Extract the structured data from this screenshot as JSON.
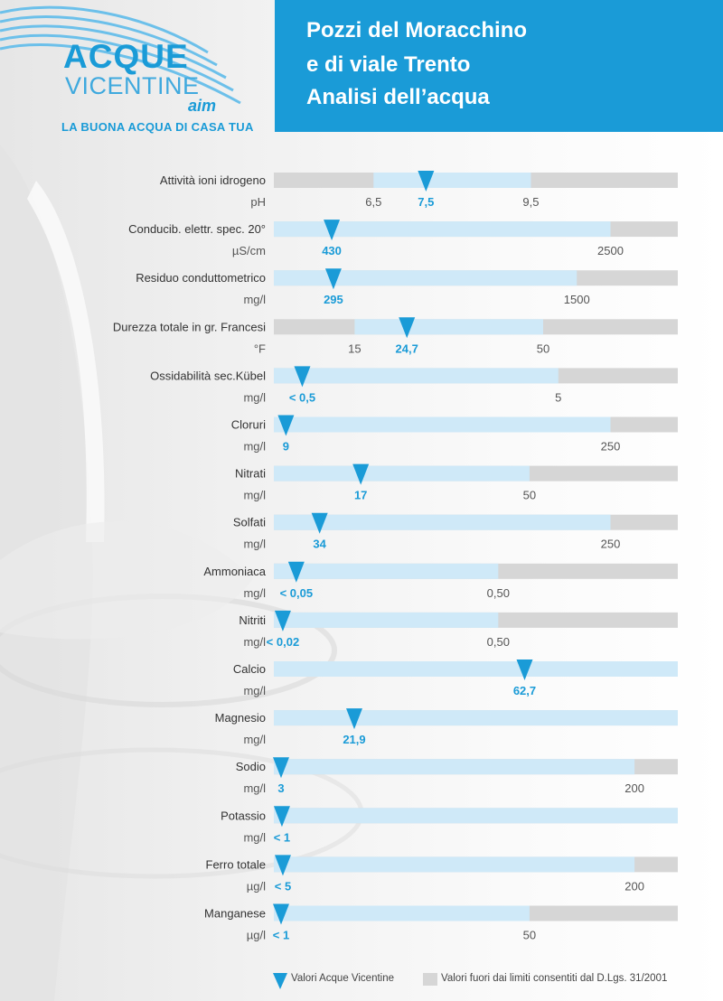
{
  "header": {
    "logo": {
      "brand_top": "ACQUE",
      "brand_bottom": "VICENTINE",
      "brand_mark": "aim",
      "tagline": "LA BUONA ACQUA DI CASA TUA"
    },
    "title_lines": [
      "Pozzi del Moracchino",
      "e di viale Trento",
      "Analisi dell’acqua"
    ]
  },
  "colors": {
    "accent": "#1a9bd7",
    "bar_ok": "#cfe9f8",
    "bar_out": "#d6d6d6",
    "label": "#333333",
    "unit": "#555555",
    "tick": "#555555"
  },
  "chart_data": {
    "type": "bar",
    "title": "Analisi dell’acqua",
    "rows": [
      {
        "label": "Attività ioni idrogeno",
        "unit": "pH",
        "value": 7.5,
        "value_label": "7,5",
        "limits": [
          6.5,
          9.5
        ],
        "limit_labels": [
          "6,5",
          "9,5"
        ],
        "axis": [
          4.6,
          12.3
        ]
      },
      {
        "label": "Conducib. elettr. spec. 20°",
        "unit": "µS/cm",
        "value": 430,
        "value_label": "430",
        "limits": [
          null,
          2500
        ],
        "limit_labels": [
          null,
          "2500"
        ],
        "axis": [
          0,
          3000
        ]
      },
      {
        "label": "Residuo conduttometrico",
        "unit": "mg/l",
        "value": 295,
        "value_label": "295",
        "limits": [
          null,
          1500
        ],
        "limit_labels": [
          null,
          "1500"
        ],
        "axis": [
          0,
          2000
        ]
      },
      {
        "label": "Durezza totale in gr. Francesi",
        "unit": "°F",
        "value": 24.7,
        "value_label": "24,7",
        "limits": [
          15,
          50
        ],
        "limit_labels": [
          "15",
          "50"
        ],
        "axis": [
          0,
          75
        ]
      },
      {
        "label": "Ossidabilità sec.Kübel",
        "unit": "mg/l",
        "value": 0.5,
        "value_label": "< 0,5",
        "limits": [
          null,
          5
        ],
        "limit_labels": [
          null,
          "5"
        ],
        "axis": [
          0,
          7.1
        ]
      },
      {
        "label": "Cloruri",
        "unit": "mg/l",
        "value": 9,
        "value_label": "9",
        "limits": [
          null,
          250
        ],
        "limit_labels": [
          null,
          "250"
        ],
        "axis": [
          0,
          300
        ]
      },
      {
        "label": "Nitrati",
        "unit": "mg/l",
        "value": 17,
        "value_label": "17",
        "limits": [
          null,
          50
        ],
        "limit_labels": [
          null,
          "50"
        ],
        "axis": [
          0,
          79
        ]
      },
      {
        "label": "Solfati",
        "unit": "mg/l",
        "value": 34,
        "value_label": "34",
        "limits": [
          null,
          250
        ],
        "limit_labels": [
          null,
          "250"
        ],
        "axis": [
          0,
          300
        ]
      },
      {
        "label": "Ammoniaca",
        "unit": "mg/l",
        "value": 0.05,
        "value_label": "< 0,05",
        "limits": [
          null,
          0.5
        ],
        "limit_labels": [
          null,
          "0,50"
        ],
        "axis": [
          0,
          0.9
        ]
      },
      {
        "label": "Nitriti",
        "unit": "mg/l",
        "value": 0.02,
        "value_label": "< 0,02",
        "limits": [
          null,
          0.5
        ],
        "limit_labels": [
          null,
          "0,50"
        ],
        "axis": [
          0,
          0.9
        ]
      },
      {
        "label": "Calcio",
        "unit": "mg/l",
        "value": 62.7,
        "value_label": "62,7",
        "limits": [
          null,
          null
        ],
        "limit_labels": [
          null,
          null
        ],
        "axis": [
          0,
          101
        ]
      },
      {
        "label": "Magnesio",
        "unit": "mg/l",
        "value": 21.9,
        "value_label": "21,9",
        "limits": [
          null,
          null
        ],
        "limit_labels": [
          null,
          null
        ],
        "axis": [
          0,
          110
        ]
      },
      {
        "label": "Sodio",
        "unit": "mg/l",
        "value": 3,
        "value_label": "3",
        "limits": [
          null,
          200
        ],
        "limit_labels": [
          null,
          "200"
        ],
        "axis": [
          0,
          224
        ]
      },
      {
        "label": "Potassio",
        "unit": "mg/l",
        "value": 1,
        "value_label": "< 1",
        "limits": [
          null,
          null
        ],
        "limit_labels": [
          null,
          null
        ],
        "axis": [
          0,
          50
        ]
      },
      {
        "label": "Ferro totale",
        "unit": "µg/l",
        "value": 5,
        "value_label": "< 5",
        "limits": [
          null,
          200
        ],
        "limit_labels": [
          null,
          "200"
        ],
        "axis": [
          0,
          224
        ]
      },
      {
        "label": "Manganese",
        "unit": "µg/l",
        "value": 1,
        "value_label": "< 1",
        "limits": [
          null,
          50
        ],
        "limit_labels": [
          null,
          "50"
        ],
        "axis": [
          0,
          79
        ]
      }
    ],
    "legend": [
      {
        "name": "Valori Acque Vicentine",
        "marker": "triangle"
      },
      {
        "name": "Valori fuori dai limiti consentiti dal D.Lgs. 31/2001",
        "marker": "gray-box"
      }
    ]
  }
}
